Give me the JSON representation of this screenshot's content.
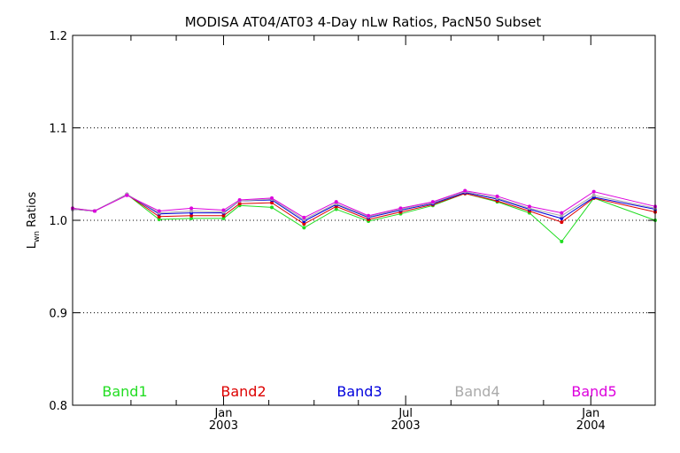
{
  "chart_data": {
    "type": "line",
    "title": "MODISA AT04/AT03 4-Day nLw Ratios, PacN50 Subset",
    "ylabel_main": "L",
    "ylabel_sub": "wn",
    "ylabel_rest": " Ratios",
    "xlim": [
      "2002-08-04",
      "2004-03-05"
    ],
    "ylim": [
      0.8,
      1.2
    ],
    "yticks": [
      {
        "value": 0.8,
        "label": "0.8"
      },
      {
        "value": 0.9,
        "label": "0.9"
      },
      {
        "value": 1.0,
        "label": "1.0"
      },
      {
        "value": 1.1,
        "label": "1.1"
      },
      {
        "value": 1.2,
        "label": "1.2"
      }
    ],
    "ygrid": [
      0.9,
      1.0,
      1.1
    ],
    "xticks_major": [
      {
        "date": "2003-01-01",
        "month": "Jan",
        "year": "2003"
      },
      {
        "date": "2003-07-01",
        "month": "Jul",
        "year": "2003"
      },
      {
        "date": "2004-01-01",
        "month": "Jan",
        "year": "2004"
      }
    ],
    "xticks_minor": [
      "2002-10-01",
      "2002-11-15",
      "2003-02-15",
      "2003-04-01",
      "2003-05-15",
      "2003-08-15",
      "2003-10-01",
      "2003-11-15"
    ],
    "x": [
      "2002-08-04",
      "2002-08-26",
      "2002-09-27",
      "2002-10-29",
      "2002-11-30",
      "2003-01-01",
      "2003-01-17",
      "2003-02-18",
      "2003-03-22",
      "2003-04-23",
      "2003-05-25",
      "2003-06-26",
      "2003-07-28",
      "2003-08-29",
      "2003-09-30",
      "2003-11-01",
      "2003-12-03",
      "2004-01-04",
      "2004-03-05"
    ],
    "series": [
      {
        "name": "Band1",
        "color": "#22dd22",
        "values": [
          1.013,
          1.01,
          1.028,
          1.001,
          1.002,
          1.002,
          1.016,
          1.014,
          0.992,
          1.012,
          0.999,
          1.007,
          1.016,
          1.029,
          1.02,
          1.008,
          0.977,
          1.024,
          1.0
        ]
      },
      {
        "name": "Band2",
        "color": "#dd0000",
        "values": [
          1.012,
          1.01,
          1.028,
          1.004,
          1.005,
          1.005,
          1.018,
          1.019,
          0.996,
          1.015,
          1.001,
          1.009,
          1.017,
          1.029,
          1.021,
          1.01,
          0.998,
          1.024,
          1.009
        ]
      },
      {
        "name": "Band3",
        "color": "#0000dd",
        "values": [
          1.012,
          1.01,
          1.028,
          1.007,
          1.008,
          1.008,
          1.021,
          1.022,
          0.999,
          1.017,
          1.003,
          1.011,
          1.018,
          1.03,
          1.023,
          1.012,
          1.002,
          1.025,
          1.012
        ]
      },
      {
        "name": "Band4",
        "color": "#aaaaaa",
        "values": [
          1.012,
          1.01,
          1.028,
          1.008,
          1.01,
          1.009,
          1.021,
          1.023,
          1.001,
          1.018,
          1.004,
          1.012,
          1.019,
          1.031,
          1.024,
          1.013,
          1.005,
          1.027,
          1.013
        ]
      },
      {
        "name": "Band5",
        "color": "#dd00dd",
        "values": [
          1.013,
          1.01,
          1.027,
          1.01,
          1.013,
          1.011,
          1.022,
          1.024,
          1.003,
          1.02,
          1.005,
          1.013,
          1.02,
          1.032,
          1.026,
          1.015,
          1.008,
          1.031,
          1.015
        ]
      }
    ],
    "legend_placement": "bottom"
  }
}
